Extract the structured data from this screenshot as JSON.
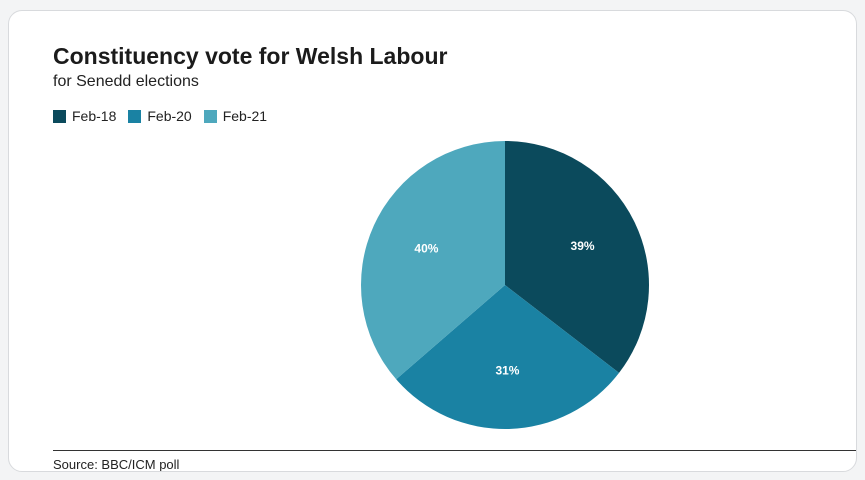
{
  "chart_data": {
    "type": "pie",
    "title": "Constituency vote for Welsh Labour",
    "subtitle": "for Senedd elections",
    "legend_position": "top-left",
    "slices": [
      {
        "label": "Feb-18",
        "value": 39,
        "value_label": "39%",
        "color": "#0b4a5c"
      },
      {
        "label": "Feb-20",
        "value": 31,
        "value_label": "31%",
        "color": "#1a82a3"
      },
      {
        "label": "Feb-21",
        "value": 40,
        "value_label": "40%",
        "color": "#4ea8bd"
      }
    ]
  },
  "footer": {
    "source": "Source: BBC/ICM poll"
  }
}
